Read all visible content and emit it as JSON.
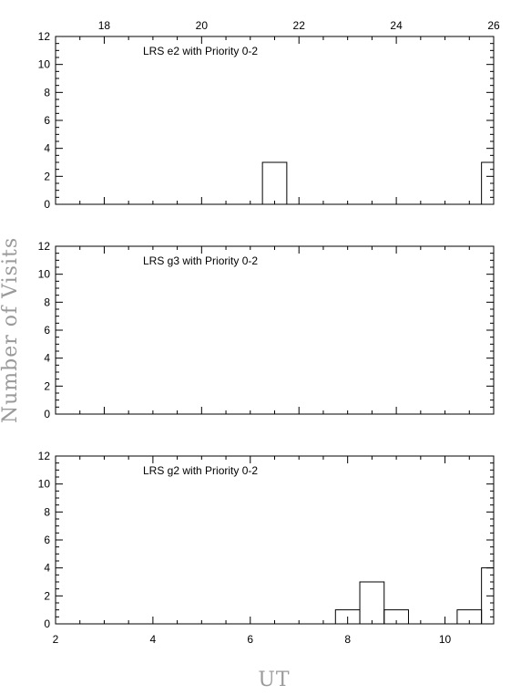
{
  "figure": {
    "ylabel": "Number of Visits",
    "xlabel": "UT"
  },
  "chart_data": [
    {
      "type": "histogram",
      "title": "LRS e2 with Priority 0-2",
      "xlim": [
        17,
        26
      ],
      "ylim": [
        0,
        12
      ],
      "x_ticks": [
        18,
        20,
        22,
        24,
        26
      ],
      "x_tick_labels": [
        "18",
        "20",
        "22",
        "24",
        "26"
      ],
      "x_tick_position": "top",
      "y_ticks": [
        0,
        2,
        4,
        6,
        8,
        10,
        12
      ],
      "y_tick_labels": [
        "0",
        "2",
        "4",
        "6",
        "8",
        "10",
        "12"
      ],
      "bin_width": 0.5,
      "bars": [
        {
          "x0": 21.25,
          "x1": 21.75,
          "value": 3
        },
        {
          "x0": 25.75,
          "x1": 26.0,
          "value": 3
        }
      ]
    },
    {
      "type": "histogram",
      "title": "LRS g3 with Priority 0-2",
      "xlim": [
        17,
        26
      ],
      "ylim": [
        0,
        12
      ],
      "x_ticks": [],
      "x_tick_labels": [],
      "x_tick_position": "none",
      "y_ticks": [
        0,
        2,
        4,
        6,
        8,
        10,
        12
      ],
      "y_tick_labels": [
        "0",
        "2",
        "4",
        "6",
        "8",
        "10",
        "12"
      ],
      "bin_width": 0.5,
      "bars": []
    },
    {
      "type": "histogram",
      "title": "LRS g2 with Priority 0-2",
      "xlim": [
        2,
        11
      ],
      "ylim": [
        0,
        12
      ],
      "x_ticks": [
        2,
        4,
        6,
        8,
        10
      ],
      "x_tick_labels": [
        "2",
        "4",
        "6",
        "8",
        "10"
      ],
      "x_tick_position": "bottom",
      "y_ticks": [
        0,
        2,
        4,
        6,
        8,
        10,
        12
      ],
      "y_tick_labels": [
        "0",
        "2",
        "4",
        "6",
        "8",
        "10",
        "12"
      ],
      "bin_width": 0.5,
      "bars": [
        {
          "x0": 7.75,
          "x1": 8.25,
          "value": 1
        },
        {
          "x0": 8.25,
          "x1": 8.75,
          "value": 3
        },
        {
          "x0": 8.75,
          "x1": 9.25,
          "value": 1
        },
        {
          "x0": 10.25,
          "x1": 10.75,
          "value": 1
        },
        {
          "x0": 10.75,
          "x1": 11.0,
          "value": 4
        }
      ]
    }
  ]
}
